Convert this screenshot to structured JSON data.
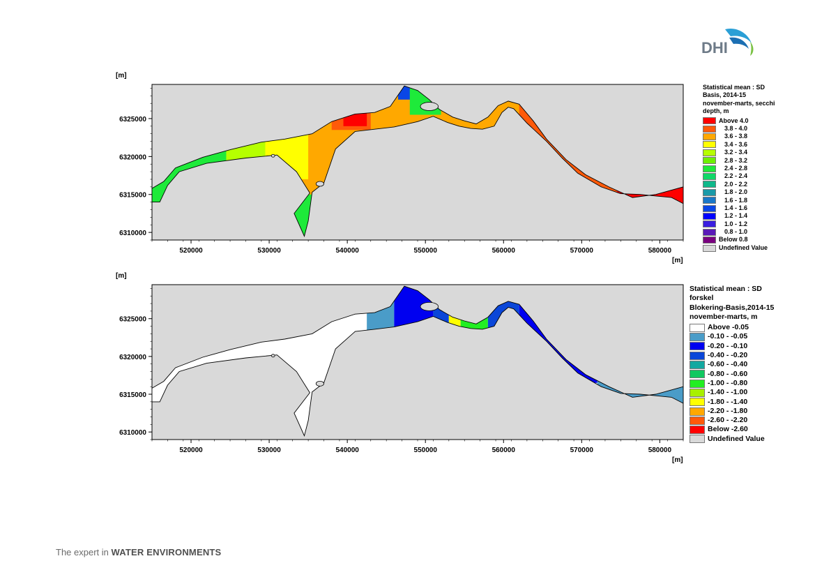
{
  "logo": {
    "text": "DHI",
    "colors": [
      "#2a9fd6",
      "#1b6fb3",
      "#7ac143"
    ]
  },
  "tagline": {
    "prefix": "The expert in ",
    "emphasis": "WATER ENVIRONMENTS"
  },
  "chart_data": [
    {
      "type": "heatmap",
      "title": "Statistical mean : SD Basis, 2014-15 november-marts, secchi depth, m",
      "title_lines": [
        "Statistical mean : SD",
        "Basis, 2014-15",
        "november-marts, secchi",
        "depth, m"
      ],
      "xlabel": "[m]",
      "ylabel": "[m]",
      "xlim": [
        515000,
        583000
      ],
      "ylim": [
        6309000,
        6329500
      ],
      "xticks": [
        520000,
        530000,
        540000,
        550000,
        560000,
        570000,
        580000
      ],
      "yticks": [
        6310000,
        6315000,
        6320000,
        6325000
      ],
      "legend": [
        {
          "label": "Above 4.0",
          "color": "#ff0000"
        },
        {
          "label": "3.8 - 4.0",
          "color": "#ff5a0a"
        },
        {
          "label": "3.6 - 3.8",
          "color": "#ffa800"
        },
        {
          "label": "3.4 - 3.6",
          "color": "#ffff00"
        },
        {
          "label": "3.2 - 3.4",
          "color": "#b6ff00"
        },
        {
          "label": "2.8 - 3.2",
          "color": "#6ef000"
        },
        {
          "label": "2.4 - 2.8",
          "color": "#1eea3a"
        },
        {
          "label": "2.2 - 2.4",
          "color": "#10d868"
        },
        {
          "label": "2.0 - 2.2",
          "color": "#10b88a"
        },
        {
          "label": "1.8 - 2.0",
          "color": "#1a9aa8"
        },
        {
          "label": "1.6 - 1.8",
          "color": "#1a78c8"
        },
        {
          "label": "1.4 - 1.6",
          "color": "#0a46e6"
        },
        {
          "label": "1.2 - 1.4",
          "color": "#0000ff"
        },
        {
          "label": "1.0 - 1.2",
          "color": "#3a1ee0"
        },
        {
          "label": "0.8 - 1.0",
          "color": "#5a1ab8"
        },
        {
          "label": "Below 0.8",
          "color": "#7a0080"
        },
        {
          "label": "Undefined Value",
          "color": "#d9d9d9"
        }
      ]
    },
    {
      "type": "heatmap",
      "title": "Statistical mean : SD forskel Blokering-Basis,2014-15 november-marts, m",
      "title_lines": [
        "Statistical mean : SD",
        "forskel",
        "Blokering-Basis,2014-15",
        "november-marts, m"
      ],
      "xlabel": "[m]",
      "ylabel": "[m]",
      "xlim": [
        515000,
        583000
      ],
      "ylim": [
        6309000,
        6329500
      ],
      "xticks": [
        520000,
        530000,
        540000,
        550000,
        560000,
        570000,
        580000
      ],
      "yticks": [
        6310000,
        6315000,
        6320000,
        6325000
      ],
      "legend": [
        {
          "label": "Above -0.05",
          "color": "#ffffff"
        },
        {
          "label": "-0.10 - -0.05",
          "color": "#4a9cc8"
        },
        {
          "label": "-0.20 - -0.10",
          "color": "#0000f0"
        },
        {
          "label": "-0.40 - -0.20",
          "color": "#0a46d8"
        },
        {
          "label": "-0.60 - -0.40",
          "color": "#12a8a0"
        },
        {
          "label": "-0.80 - -0.60",
          "color": "#10c860"
        },
        {
          "label": "-1.00 - -0.80",
          "color": "#22ee22"
        },
        {
          "label": "-1.40 - -1.00",
          "color": "#a8f000"
        },
        {
          "label": "-1.80 - -1.40",
          "color": "#ffff00"
        },
        {
          "label": "-2.20 - -1.80",
          "color": "#ffa800"
        },
        {
          "label": "-2.60 - -2.20",
          "color": "#ff5a0a"
        },
        {
          "label": "Below -2.60",
          "color": "#ff0000"
        },
        {
          "label": "Undefined Value",
          "color": "#d9d9d9"
        }
      ]
    }
  ]
}
